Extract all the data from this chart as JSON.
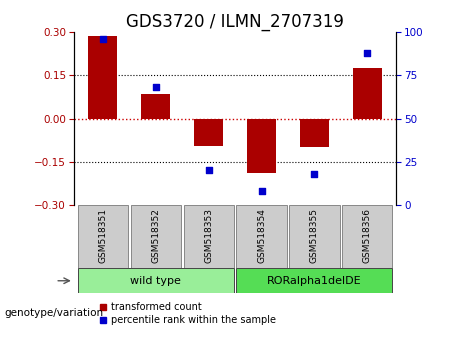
{
  "title": "GDS3720 / ILMN_2707319",
  "samples": [
    "GSM518351",
    "GSM518352",
    "GSM518353",
    "GSM518354",
    "GSM518355",
    "GSM518356"
  ],
  "bar_values": [
    0.285,
    0.085,
    -0.095,
    -0.19,
    -0.1,
    0.175
  ],
  "scatter_values": [
    96,
    68,
    20,
    8,
    18,
    88
  ],
  "ylim_left": [
    -0.3,
    0.3
  ],
  "ylim_right": [
    0,
    100
  ],
  "yticks_left": [
    -0.3,
    -0.15,
    0,
    0.15,
    0.3
  ],
  "yticks_right": [
    0,
    25,
    50,
    75,
    100
  ],
  "bar_color": "#aa0000",
  "scatter_color": "#0000cc",
  "hline_red_color": "#cc0000",
  "groups": [
    {
      "label": "wild type",
      "indices": [
        0,
        1,
        2
      ],
      "color": "#99ee99"
    },
    {
      "label": "RORalpha1delDE",
      "indices": [
        3,
        4,
        5
      ],
      "color": "#55dd55"
    }
  ],
  "genotype_label": "genotype/variation",
  "legend_bar": "transformed count",
  "legend_scatter": "percentile rank within the sample",
  "sample_box_color": "#cccccc",
  "title_fontsize": 12,
  "tick_fontsize": 7.5,
  "sample_fontsize": 6.5,
  "group_fontsize": 8,
  "legend_fontsize": 7,
  "genotype_fontsize": 7.5
}
